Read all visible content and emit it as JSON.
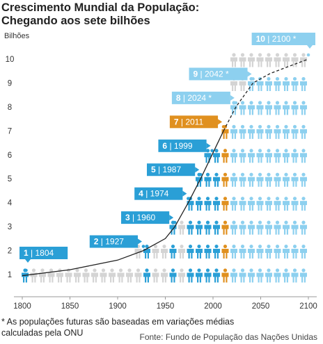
{
  "title_line1": "Crescimento Mundial da População:",
  "title_line2": "Chegando aos sete bilhões",
  "footnote_line1": "* As populações futuras são baseadas em variações médias",
  "footnote_line2": "calculadas pela ONU",
  "source": "Fonte: Fundo de População das Nações Unidas",
  "colors": {
    "past": "#2a9fd6",
    "current": "#e0901f",
    "future": "#8dd0ef",
    "filler": "#d4d4d4"
  },
  "chart_data": {
    "type": "line",
    "ylabel": "Bilhões",
    "xlim": [
      1800,
      2110
    ],
    "ylim": [
      0.4,
      10.6
    ],
    "x_ticks": [
      1800,
      1850,
      1900,
      1950,
      2000,
      2050,
      2100
    ],
    "y_ticks": [
      1,
      2,
      3,
      4,
      5,
      6,
      7,
      8,
      9,
      10
    ],
    "milestones": [
      {
        "label": "1 | 1804",
        "year": 1804,
        "value": 1,
        "kind": "past"
      },
      {
        "label": "2 | 1927",
        "year": 1927,
        "value": 2,
        "kind": "past"
      },
      {
        "label": "3 | 1960",
        "year": 1960,
        "value": 3,
        "kind": "past"
      },
      {
        "label": "4 | 1974",
        "year": 1974,
        "value": 4,
        "kind": "past"
      },
      {
        "label": "5 | 1987",
        "year": 1987,
        "value": 5,
        "kind": "past"
      },
      {
        "label": "6 | 1999",
        "year": 1999,
        "value": 6,
        "kind": "past"
      },
      {
        "label": "7 | 2011",
        "year": 2011,
        "value": 7,
        "kind": "current"
      },
      {
        "label": "8 | 2024 *",
        "year": 2024,
        "value": 8,
        "kind": "future"
      },
      {
        "label": "9 | 2042 *",
        "year": 2042,
        "value": 9,
        "kind": "future"
      },
      {
        "label": "10 | 2100 *",
        "year": 2100,
        "value": 10,
        "kind": "future"
      }
    ],
    "series": [
      {
        "line_style": "solid",
        "points": [
          [
            1800,
            0.95
          ],
          [
            1850,
            1.2
          ],
          [
            1900,
            1.6
          ],
          [
            1927,
            2
          ],
          [
            1950,
            2.5
          ],
          [
            1960,
            3
          ],
          [
            1974,
            4
          ],
          [
            1987,
            5
          ],
          [
            1999,
            6
          ],
          [
            2011,
            7
          ]
        ]
      },
      {
        "line_style": "dashed",
        "points": [
          [
            2011,
            7
          ],
          [
            2024,
            8
          ],
          [
            2042,
            9
          ],
          [
            2060,
            9.4
          ],
          [
            2080,
            9.7
          ],
          [
            2100,
            10
          ]
        ]
      }
    ]
  }
}
